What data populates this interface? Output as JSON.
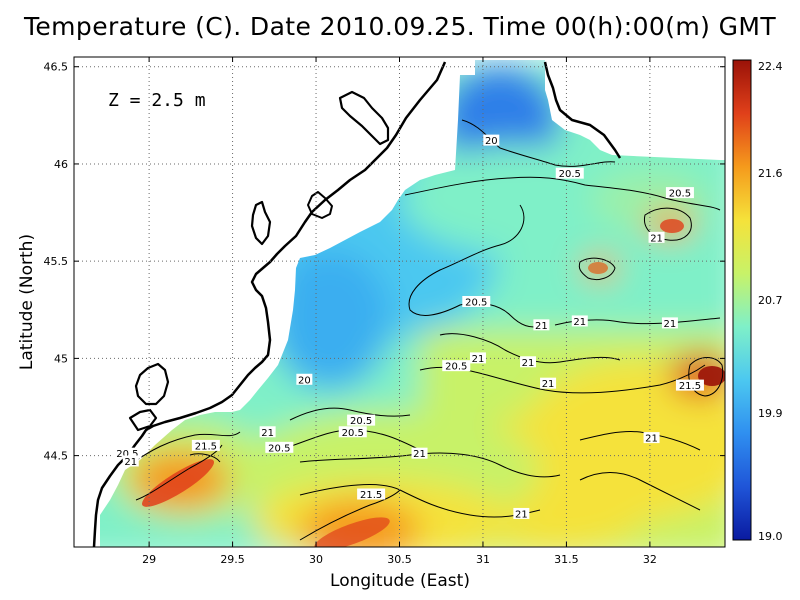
{
  "title": "Temperature (C). Date 2010.09.25. Time 00(h):00(m) GMT",
  "depth_label": "Z = 2.5 m",
  "colors": {
    "land": "#ffffff",
    "coast": "#000000",
    "colormap": [
      "#0a1aa0",
      "#1f55d8",
      "#2f8ff0",
      "#4cc8f0",
      "#7ff0c8",
      "#c8f268",
      "#f5e23a",
      "#f59a1c",
      "#e0401a",
      "#9a1208"
    ]
  },
  "chart_data": {
    "type": "heatmap",
    "title": "Temperature (C). Date 2010.09.25. Time 00(h):00(m) GMT",
    "xlabel": "Longitude (East)",
    "ylabel": "Latitude (North)",
    "xlim": [
      28.55,
      32.45
    ],
    "ylim": [
      44.03,
      46.55
    ],
    "x_ticks": [
      29,
      29.5,
      30,
      30.5,
      31,
      31.5,
      32
    ],
    "x_tick_labels": [
      "29",
      "29.5",
      "30",
      "30.5",
      "31",
      "31.5",
      "32"
    ],
    "y_ticks": [
      44.5,
      45,
      45.5,
      46,
      46.5
    ],
    "y_tick_labels": [
      "44.5",
      "45",
      "45.5",
      "46",
      "46.5"
    ],
    "grid": true,
    "colorbar": {
      "min": 19.0,
      "max": 22.4,
      "tick_values": [
        19.0,
        19.9,
        20.7,
        21.6,
        22.4
      ],
      "tick_labels": [
        "19.0",
        "19.9",
        "20.7",
        "21.6",
        "22.4"
      ]
    },
    "contour_levels": [
      20,
      20.5,
      21,
      21.5
    ],
    "contour_labels": [
      {
        "text": "20",
        "lon": 31.05,
        "lat": 46.12
      },
      {
        "text": "20.5",
        "lon": 31.52,
        "lat": 45.95
      },
      {
        "text": "20.5",
        "lon": 32.18,
        "lat": 45.85
      },
      {
        "text": "21",
        "lon": 32.04,
        "lat": 45.62
      },
      {
        "text": "20.5",
        "lon": 30.96,
        "lat": 45.29
      },
      {
        "text": "21",
        "lon": 31.35,
        "lat": 45.17
      },
      {
        "text": "21",
        "lon": 31.58,
        "lat": 45.19
      },
      {
        "text": "21",
        "lon": 32.12,
        "lat": 45.18
      },
      {
        "text": "21",
        "lon": 30.97,
        "lat": 45.0
      },
      {
        "text": "21",
        "lon": 31.27,
        "lat": 44.98
      },
      {
        "text": "20.5",
        "lon": 30.84,
        "lat": 44.96
      },
      {
        "text": "21",
        "lon": 31.39,
        "lat": 44.87
      },
      {
        "text": "21.5",
        "lon": 32.24,
        "lat": 44.86
      },
      {
        "text": "20",
        "lon": 29.93,
        "lat": 44.89
      },
      {
        "text": "20.5",
        "lon": 30.27,
        "lat": 44.68
      },
      {
        "text": "20.5",
        "lon": 30.22,
        "lat": 44.62
      },
      {
        "text": "21",
        "lon": 29.71,
        "lat": 44.62
      },
      {
        "text": "21",
        "lon": 32.01,
        "lat": 44.59
      },
      {
        "text": "21.5",
        "lon": 29.34,
        "lat": 44.55
      },
      {
        "text": "20.5",
        "lon": 28.87,
        "lat": 44.51
      },
      {
        "text": "21",
        "lon": 28.89,
        "lat": 44.47
      },
      {
        "text": "20.5",
        "lon": 29.78,
        "lat": 44.54
      },
      {
        "text": "21",
        "lon": 30.62,
        "lat": 44.51
      },
      {
        "text": "21.5",
        "lon": 30.33,
        "lat": 44.3
      },
      {
        "text": "21",
        "lon": 31.23,
        "lat": 44.2
      }
    ]
  }
}
